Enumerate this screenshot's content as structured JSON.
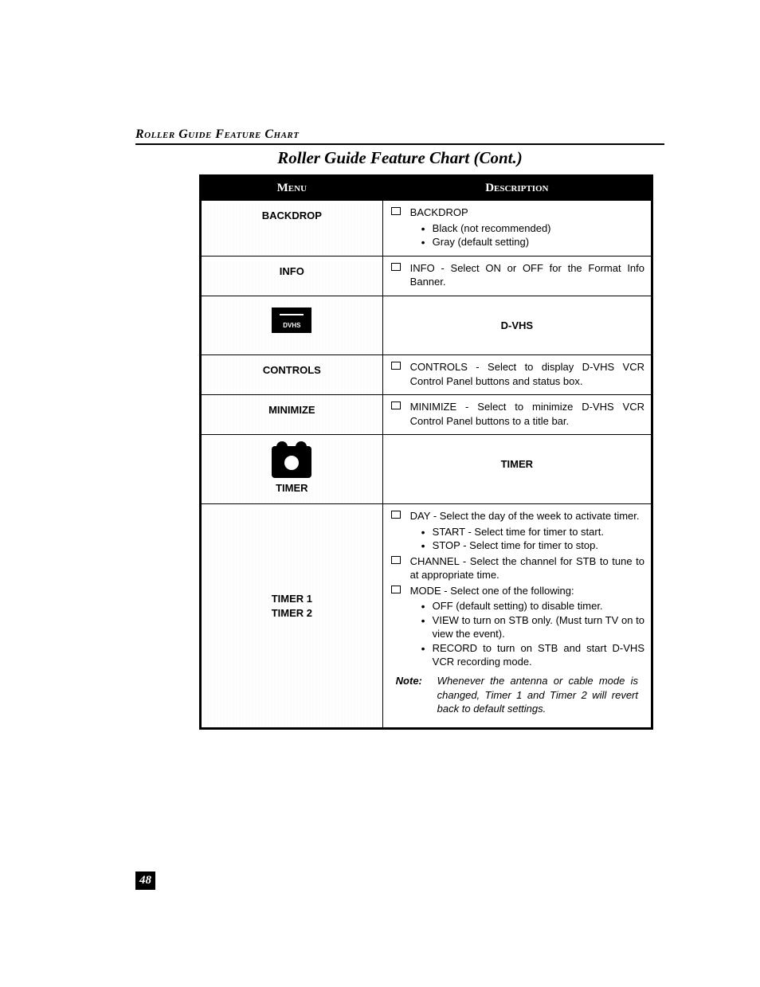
{
  "section_header": "Roller Guide Feature Chart",
  "title": "Roller Guide Feature Chart (Cont.)",
  "page_number": "48",
  "headers": {
    "menu": "Menu",
    "description": "Description"
  },
  "rows": {
    "backdrop": {
      "menu": "BACKDROP",
      "item_label": "BACKDROP",
      "sub1": "Black (not recommended)",
      "sub2": "Gray (default setting)"
    },
    "info": {
      "menu": "INFO",
      "text": "INFO - Select ON or OFF for the Format Info Banner."
    },
    "dvhs": {
      "menu": "DVHS",
      "desc": "D-VHS"
    },
    "controls": {
      "menu": "CONTROLS",
      "text": "CONTROLS - Select to display D-VHS VCR Control Panel buttons and status box."
    },
    "minimize": {
      "menu": "MINIMIZE",
      "text": "MINIMIZE - Select to minimize D-VHS VCR Control Panel buttons to a title bar."
    },
    "timer_header": {
      "menu": "TIMER",
      "desc": "TIMER"
    },
    "timers": {
      "menu1": "TIMER 1",
      "menu2": "TIMER 2",
      "day": "DAY - Select the day of the week to activate timer.",
      "start": "START - Select time for timer to start.",
      "stop": "STOP -  Select time for timer to stop.",
      "channel": "CHANNEL - Select the channel for STB to tune to at appropriate time.",
      "mode": "MODE - Select one of the following:",
      "mode_off": "OFF (default setting) to disable timer.",
      "mode_view": "VIEW to turn on STB only. (Must turn TV on to view the event).",
      "mode_record": "RECORD to turn on STB and start D-VHS VCR recording mode.",
      "note_label": "Note:",
      "note_text": "Whenever the antenna or cable mode is changed, Timer 1 and Timer 2 will revert back to default settings."
    }
  }
}
